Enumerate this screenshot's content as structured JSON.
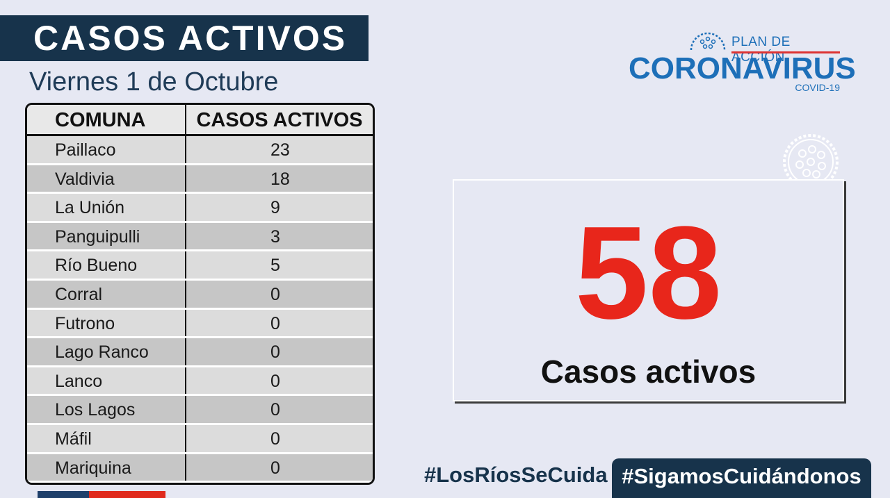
{
  "header": {
    "title": "CASOS ACTIVOS",
    "date": "Viernes 1 de Octubre"
  },
  "table": {
    "columns": [
      "COMUNA",
      "CASOS ACTIVOS"
    ],
    "rows": [
      {
        "comuna": "Paillaco",
        "casos": "23"
      },
      {
        "comuna": "Valdivia",
        "casos": "18"
      },
      {
        "comuna": "La Unión",
        "casos": "9"
      },
      {
        "comuna": "Panguipulli",
        "casos": "3"
      },
      {
        "comuna": "Río Bueno",
        "casos": "5"
      },
      {
        "comuna": "Corral",
        "casos": "0"
      },
      {
        "comuna": "Futrono",
        "casos": "0"
      },
      {
        "comuna": "Lago Ranco",
        "casos": "0"
      },
      {
        "comuna": "Lanco",
        "casos": "0"
      },
      {
        "comuna": "Los Lagos",
        "casos": "0"
      },
      {
        "comuna": "Máfil",
        "casos": "0"
      },
      {
        "comuna": "Mariquina",
        "casos": "0"
      }
    ]
  },
  "logo": {
    "plan": "PLAN DE ACCIÓN",
    "name": "CORONAVIRUS",
    "sub": "COVID-19"
  },
  "summary": {
    "total": "58",
    "label": "Casos activos"
  },
  "footer": {
    "hashtag_1": "#LosRíosSeCuida",
    "hashtag_2": "#SigamosCuidándonos"
  },
  "colors": {
    "navy": "#17334b",
    "accent_red": "#e8261b",
    "logo_blue": "#1d6fb8",
    "background": "#e6e8f3"
  },
  "icons": [
    "virus-icon",
    "virus-decoration-icon"
  ]
}
